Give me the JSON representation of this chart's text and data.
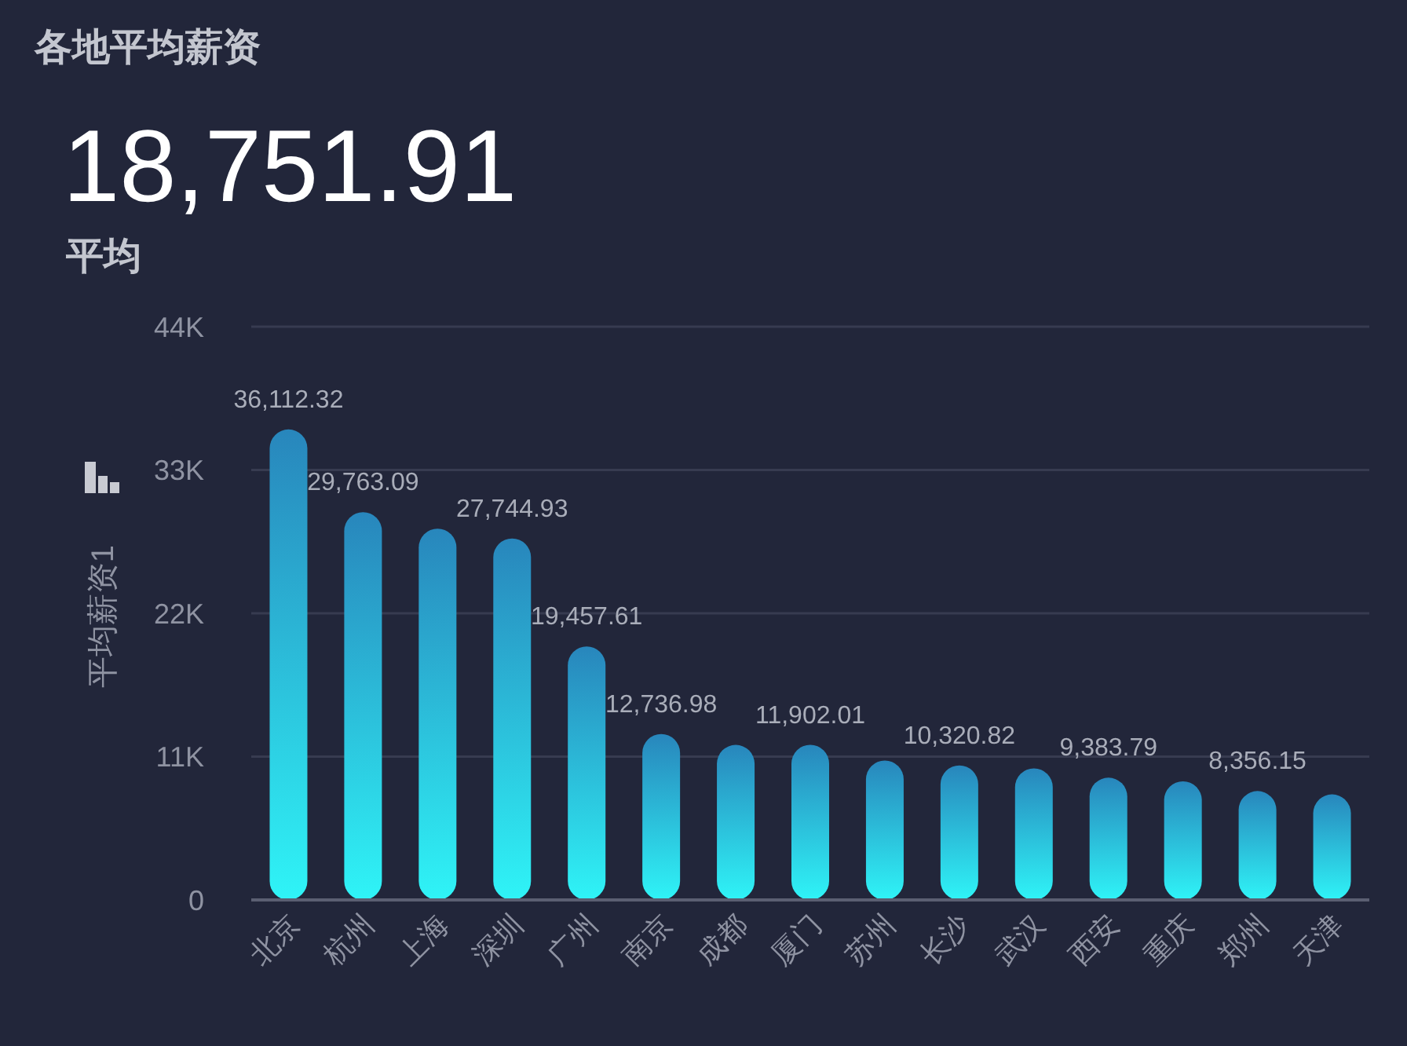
{
  "chart_data": {
    "type": "bar",
    "title": "各地平均薪资",
    "annotations": [
      "18,751.91",
      "平均"
    ],
    "ylabel": "平均薪资1",
    "categories": [
      "北京",
      "杭州",
      "上海",
      "深圳",
      "广州",
      "南京",
      "成都",
      "厦门",
      "苏州",
      "长沙",
      "武汉",
      "西安",
      "重庆",
      "郑州",
      "天津"
    ],
    "values": [
      36112.32,
      29763.09,
      28500,
      27744.93,
      19457.61,
      12736.98,
      11900,
      11902.01,
      10700,
      10320.82,
      10100,
      9383.79,
      9100,
      8356.15,
      8100
    ],
    "value_labels": [
      "36,112.32",
      "29,763.09",
      null,
      "27,744.93",
      "19,457.61",
      "12,736.98",
      null,
      "11,902.01",
      null,
      "10,320.82",
      null,
      "9,383.79",
      null,
      "8,356.15",
      null
    ],
    "color": "#2bb5d8",
    "ylim": [
      0,
      44000
    ],
    "yticks": [
      0,
      {
        "value": 11000,
        "label": "11K"
      },
      {
        "value": 22000,
        "label": "22K"
      },
      {
        "value": 33000,
        "label": "33K"
      },
      {
        "value": 44000,
        "label": "44K"
      }
    ],
    "grid": "y"
  }
}
